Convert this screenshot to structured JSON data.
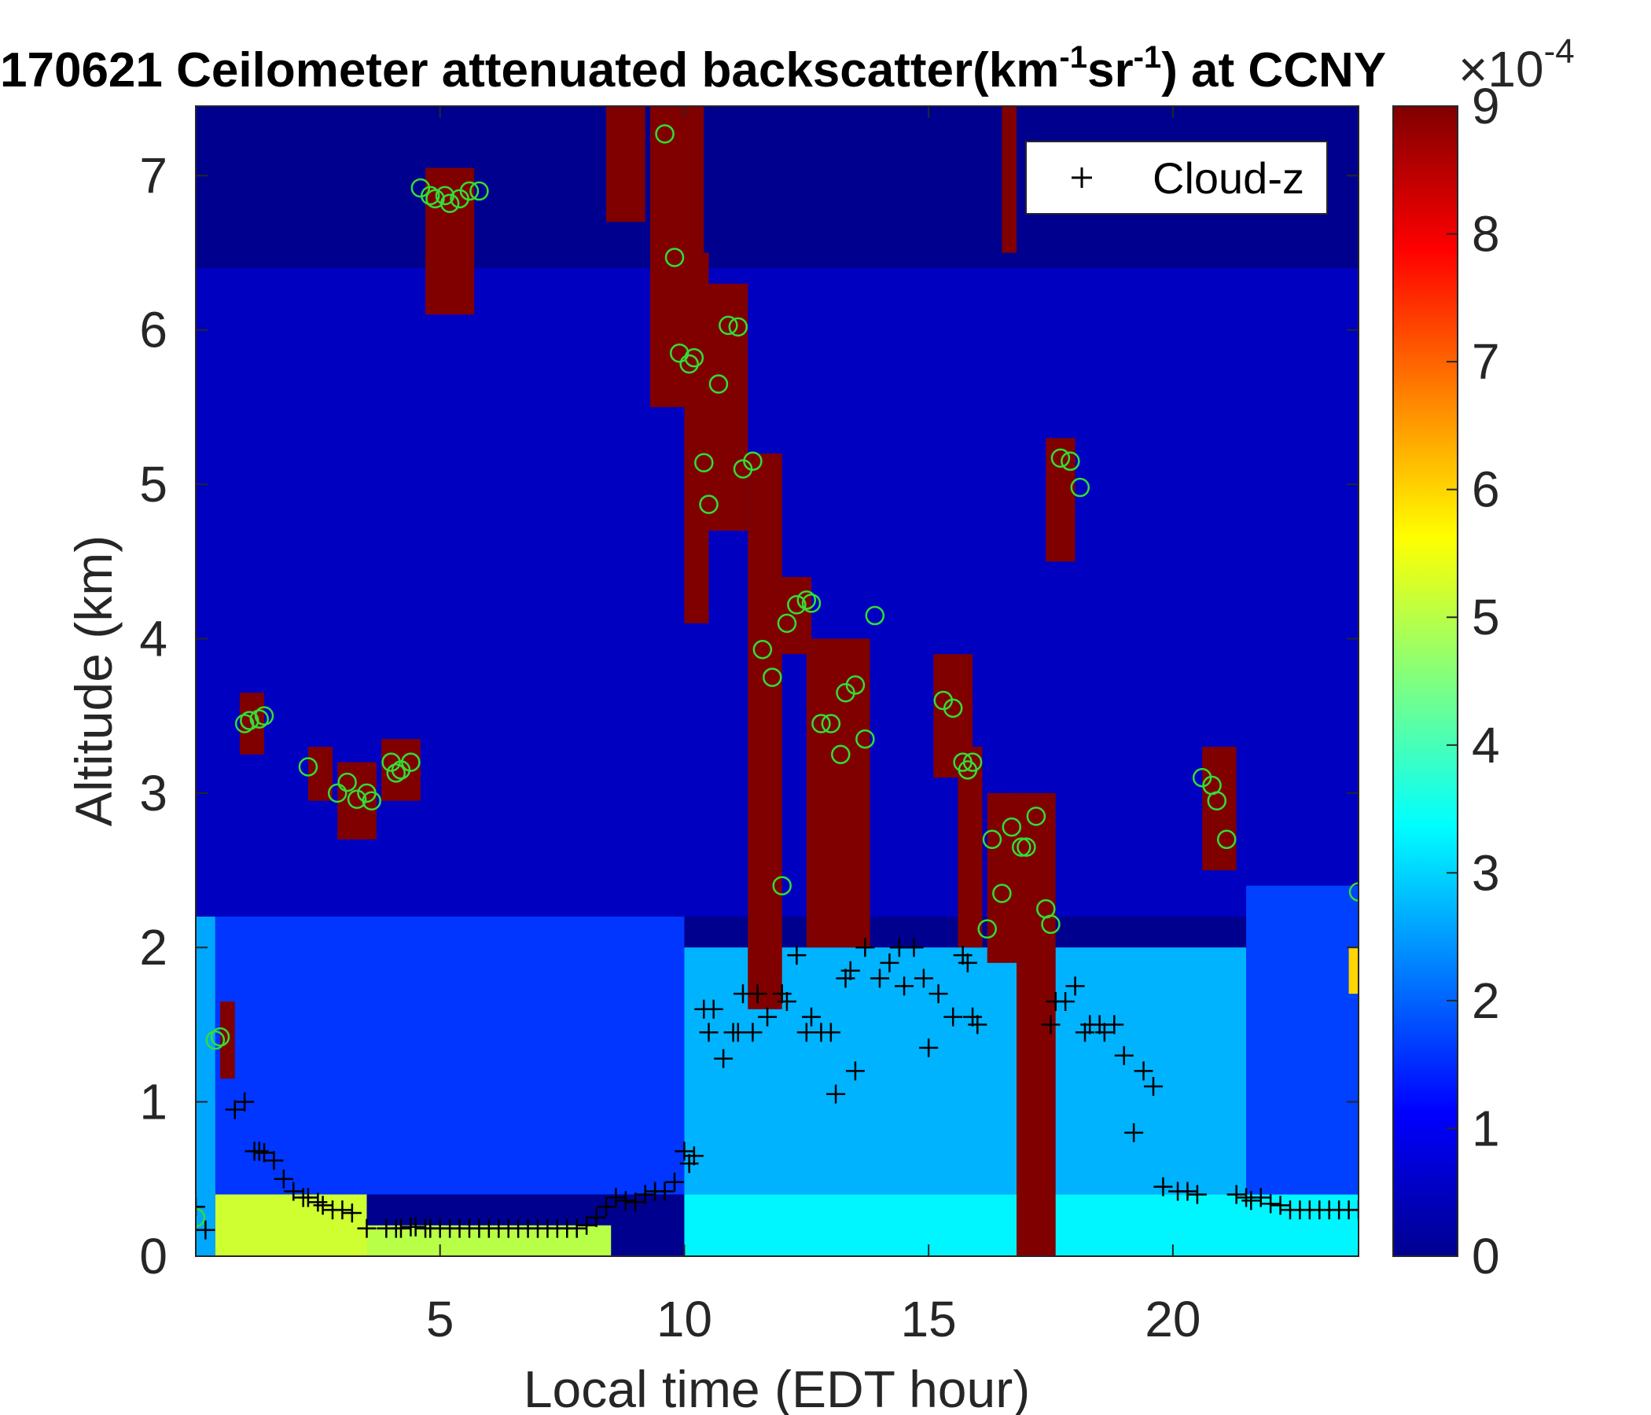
{
  "chart_data": {
    "type": "heatmap",
    "title": {
      "prefix": "170621 Ceilometer attenuated backscatter(km",
      "sup1": "-1",
      "middle": "sr",
      "sup2": "-1",
      "suffix": ") at CCNY"
    },
    "xlabel": "Local time (EDT hour)",
    "ylabel": "Altitude (km)",
    "xlim": [
      0,
      23.8
    ],
    "ylim": [
      0,
      7.45
    ],
    "xticks": [
      5,
      10,
      15,
      20
    ],
    "yticks": [
      0,
      1,
      2,
      3,
      4,
      5,
      6,
      7
    ],
    "colorbar": {
      "min": 0,
      "max": 9,
      "ticks": [
        0,
        1,
        2,
        3,
        4,
        5,
        6,
        7,
        8,
        9
      ],
      "exponent_label": "×10",
      "exponent": "-4",
      "colormap": "jet"
    },
    "legend": {
      "entries": [
        "Cloud-z"
      ],
      "position": "top-right",
      "marker": "+"
    },
    "colors": {
      "cloud_marker": "#000000",
      "circle_marker": "#33dd33",
      "background_low": "#00008f"
    },
    "cloud_z": {
      "x": [
        0.0,
        0.2,
        0.8,
        1.0,
        1.2,
        1.3,
        1.4,
        1.6,
        1.8,
        2.0,
        2.2,
        2.3,
        2.5,
        2.6,
        2.8,
        3.0,
        3.2,
        3.5,
        3.9,
        4.1,
        4.2,
        4.4,
        4.5,
        4.7,
        4.8,
        5.0,
        5.2,
        5.4,
        5.6,
        5.8,
        6.0,
        6.2,
        6.4,
        6.6,
        6.8,
        7.0,
        7.2,
        7.4,
        7.6,
        7.8,
        8.0,
        8.2,
        8.4,
        8.6,
        8.8,
        9.0,
        9.2,
        9.4,
        9.6,
        9.8,
        10.0,
        10.1,
        10.2,
        10.4,
        10.5,
        10.6,
        10.8,
        11.0,
        11.1,
        11.2,
        11.4,
        11.5,
        11.7,
        12.0,
        12.1,
        12.3,
        12.5,
        12.6,
        12.8,
        13.0,
        13.1,
        13.3,
        13.4,
        13.5,
        13.7,
        14.0,
        14.2,
        14.4,
        14.5,
        14.7,
        14.9,
        15.0,
        15.2,
        15.5,
        15.7,
        15.8,
        15.9,
        16.0,
        17.5,
        17.6,
        17.8,
        18.0,
        18.2,
        18.3,
        18.5,
        18.6,
        18.8,
        19.0,
        19.2,
        19.4,
        19.6,
        19.8,
        20.1,
        20.3,
        20.5,
        21.3,
        21.5,
        21.6,
        21.8,
        22.0,
        22.2,
        22.4,
        22.6,
        22.8,
        23.0,
        23.2,
        23.4,
        23.6,
        23.8
      ],
      "y": [
        0.32,
        0.17,
        0.95,
        1.0,
        0.68,
        0.68,
        0.67,
        0.62,
        0.5,
        0.42,
        0.38,
        0.38,
        0.35,
        0.33,
        0.3,
        0.3,
        0.28,
        0.18,
        0.18,
        0.18,
        0.18,
        0.19,
        0.19,
        0.18,
        0.18,
        0.18,
        0.18,
        0.18,
        0.18,
        0.18,
        0.18,
        0.18,
        0.18,
        0.18,
        0.18,
        0.18,
        0.18,
        0.18,
        0.18,
        0.18,
        0.2,
        0.25,
        0.32,
        0.38,
        0.36,
        0.35,
        0.4,
        0.42,
        0.42,
        0.48,
        0.68,
        0.6,
        0.65,
        1.6,
        1.45,
        1.6,
        1.28,
        1.45,
        1.45,
        1.7,
        1.45,
        1.7,
        1.55,
        1.7,
        1.65,
        1.95,
        1.45,
        1.55,
        1.45,
        1.45,
        1.05,
        1.8,
        1.85,
        1.2,
        2.0,
        1.8,
        1.9,
        2.0,
        1.75,
        2.0,
        1.8,
        1.35,
        1.7,
        1.55,
        1.95,
        1.9,
        1.55,
        1.5,
        1.5,
        1.65,
        1.65,
        1.75,
        1.45,
        1.5,
        1.5,
        1.45,
        1.5,
        1.3,
        0.8,
        1.2,
        1.1,
        0.45,
        0.42,
        0.42,
        0.4,
        0.4,
        0.38,
        0.36,
        0.38,
        0.34,
        0.33,
        0.3,
        0.3,
        0.3,
        0.3,
        0.3,
        0.3,
        0.3,
        0.3
      ]
    },
    "green_circles": {
      "x": [
        0.0,
        0.4,
        0.5,
        1.0,
        1.1,
        1.3,
        1.4,
        2.3,
        2.9,
        3.1,
        3.3,
        3.5,
        3.6,
        4.0,
        4.1,
        4.2,
        4.4,
        4.6,
        4.8,
        4.9,
        5.1,
        5.2,
        5.4,
        5.6,
        5.8,
        9.6,
        9.8,
        9.9,
        10.1,
        10.2,
        10.4,
        10.5,
        10.7,
        10.9,
        11.1,
        11.2,
        11.4,
        11.6,
        11.8,
        12.0,
        12.1,
        12.3,
        12.5,
        12.6,
        12.8,
        13.0,
        13.2,
        13.3,
        13.5,
        13.7,
        13.9,
        15.3,
        15.5,
        15.7,
        15.8,
        15.9,
        16.2,
        16.3,
        16.5,
        16.7,
        16.9,
        17.0,
        17.2,
        17.4,
        17.5,
        17.7,
        17.9,
        18.1,
        20.6,
        20.8,
        20.9,
        21.1,
        23.8
      ],
      "y": [
        0.25,
        1.4,
        1.42,
        3.45,
        3.47,
        3.48,
        3.5,
        3.17,
        3.0,
        3.07,
        2.96,
        3.0,
        2.95,
        3.2,
        3.13,
        3.15,
        3.2,
        6.92,
        6.87,
        6.85,
        6.87,
        6.82,
        6.85,
        6.9,
        6.9,
        7.27,
        6.47,
        5.85,
        5.78,
        5.82,
        5.14,
        4.87,
        5.65,
        6.03,
        6.02,
        5.1,
        5.15,
        3.93,
        3.75,
        2.4,
        4.1,
        4.22,
        4.25,
        4.23,
        3.45,
        3.45,
        3.25,
        3.65,
        3.7,
        3.35,
        4.15,
        3.6,
        3.55,
        3.2,
        3.15,
        3.2,
        2.12,
        2.7,
        2.35,
        2.78,
        2.65,
        2.65,
        2.85,
        2.25,
        2.15,
        5.17,
        5.15,
        4.98,
        3.1,
        3.05,
        2.95,
        2.7,
        2.36
      ]
    },
    "backscatter_features": [
      {
        "t0": 0.0,
        "t1": 0.4,
        "z0": 0.0,
        "z1": 2.65,
        "v": 2.6
      },
      {
        "t0": 0.4,
        "t1": 3.5,
        "z0": 0.0,
        "z1": 0.45,
        "v": 5.2
      },
      {
        "t0": 3.5,
        "t1": 8.5,
        "z0": 0.0,
        "z1": 0.2,
        "v": 5.0
      },
      {
        "t0": 0.4,
        "t1": 1.7,
        "z0": 0.4,
        "z1": 1.0,
        "v": 4.3
      },
      {
        "t0": 0.4,
        "t1": 10.0,
        "z0": 0.4,
        "z1": 2.2,
        "v": 1.6
      },
      {
        "t0": 0.0,
        "t1": 23.8,
        "z0": 2.2,
        "z1": 6.4,
        "v": 0.5
      },
      {
        "t0": 10.0,
        "t1": 23.8,
        "z0": 0.0,
        "z1": 0.4,
        "v": 3.3
      },
      {
        "t0": 10.0,
        "t1": 21.5,
        "z0": 0.4,
        "z1": 2.0,
        "v": 2.7
      },
      {
        "t0": 21.5,
        "t1": 23.8,
        "z0": 0.4,
        "z1": 2.4,
        "v": 1.7
      },
      {
        "t0": 0.5,
        "t1": 0.8,
        "z0": 1.15,
        "z1": 1.65,
        "v": 9.0
      },
      {
        "t0": 0.9,
        "t1": 1.4,
        "z0": 3.25,
        "z1": 3.65,
        "v": 9.0
      },
      {
        "t0": 2.3,
        "t1": 2.8,
        "z0": 2.95,
        "z1": 3.3,
        "v": 9.0
      },
      {
        "t0": 2.9,
        "t1": 3.7,
        "z0": 2.7,
        "z1": 3.2,
        "v": 9.0
      },
      {
        "t0": 3.8,
        "t1": 4.6,
        "z0": 2.95,
        "z1": 3.35,
        "v": 9.0
      },
      {
        "t0": 4.7,
        "t1": 5.7,
        "z0": 6.1,
        "z1": 7.05,
        "v": 9.0
      },
      {
        "t0": 8.4,
        "t1": 9.2,
        "z0": 6.7,
        "z1": 7.45,
        "v": 9.0
      },
      {
        "t0": 9.3,
        "t1": 10.4,
        "z0": 5.5,
        "z1": 7.45,
        "v": 9.0
      },
      {
        "t0": 10.0,
        "t1": 10.5,
        "z0": 4.1,
        "z1": 6.5,
        "v": 9.0
      },
      {
        "t0": 10.4,
        "t1": 11.3,
        "z0": 4.7,
        "z1": 6.3,
        "v": 9.0
      },
      {
        "t0": 11.3,
        "t1": 12.0,
        "z0": 1.6,
        "z1": 5.2,
        "v": 9.0
      },
      {
        "t0": 11.9,
        "t1": 12.6,
        "z0": 3.9,
        "z1": 4.4,
        "v": 9.0
      },
      {
        "t0": 12.5,
        "t1": 13.8,
        "z0": 2.0,
        "z1": 4.0,
        "v": 9.0
      },
      {
        "t0": 15.1,
        "t1": 15.9,
        "z0": 3.1,
        "z1": 3.9,
        "v": 9.0
      },
      {
        "t0": 15.6,
        "t1": 16.1,
        "z0": 2.0,
        "z1": 3.3,
        "v": 9.0
      },
      {
        "t0": 16.2,
        "t1": 17.0,
        "z0": 1.9,
        "z1": 3.0,
        "v": 9.0
      },
      {
        "t0": 16.8,
        "t1": 17.6,
        "z0": 0.0,
        "z1": 3.0,
        "v": 9.0
      },
      {
        "t0": 16.5,
        "t1": 16.8,
        "z0": 6.5,
        "z1": 7.45,
        "v": 9.0
      },
      {
        "t0": 17.4,
        "t1": 18.0,
        "z0": 4.5,
        "z1": 5.3,
        "v": 9.0
      },
      {
        "t0": 20.6,
        "t1": 21.3,
        "z0": 2.5,
        "z1": 3.3,
        "v": 9.0
      },
      {
        "t0": 23.6,
        "t1": 23.8,
        "z0": 1.7,
        "z1": 2.0,
        "v": 6.0
      }
    ]
  }
}
